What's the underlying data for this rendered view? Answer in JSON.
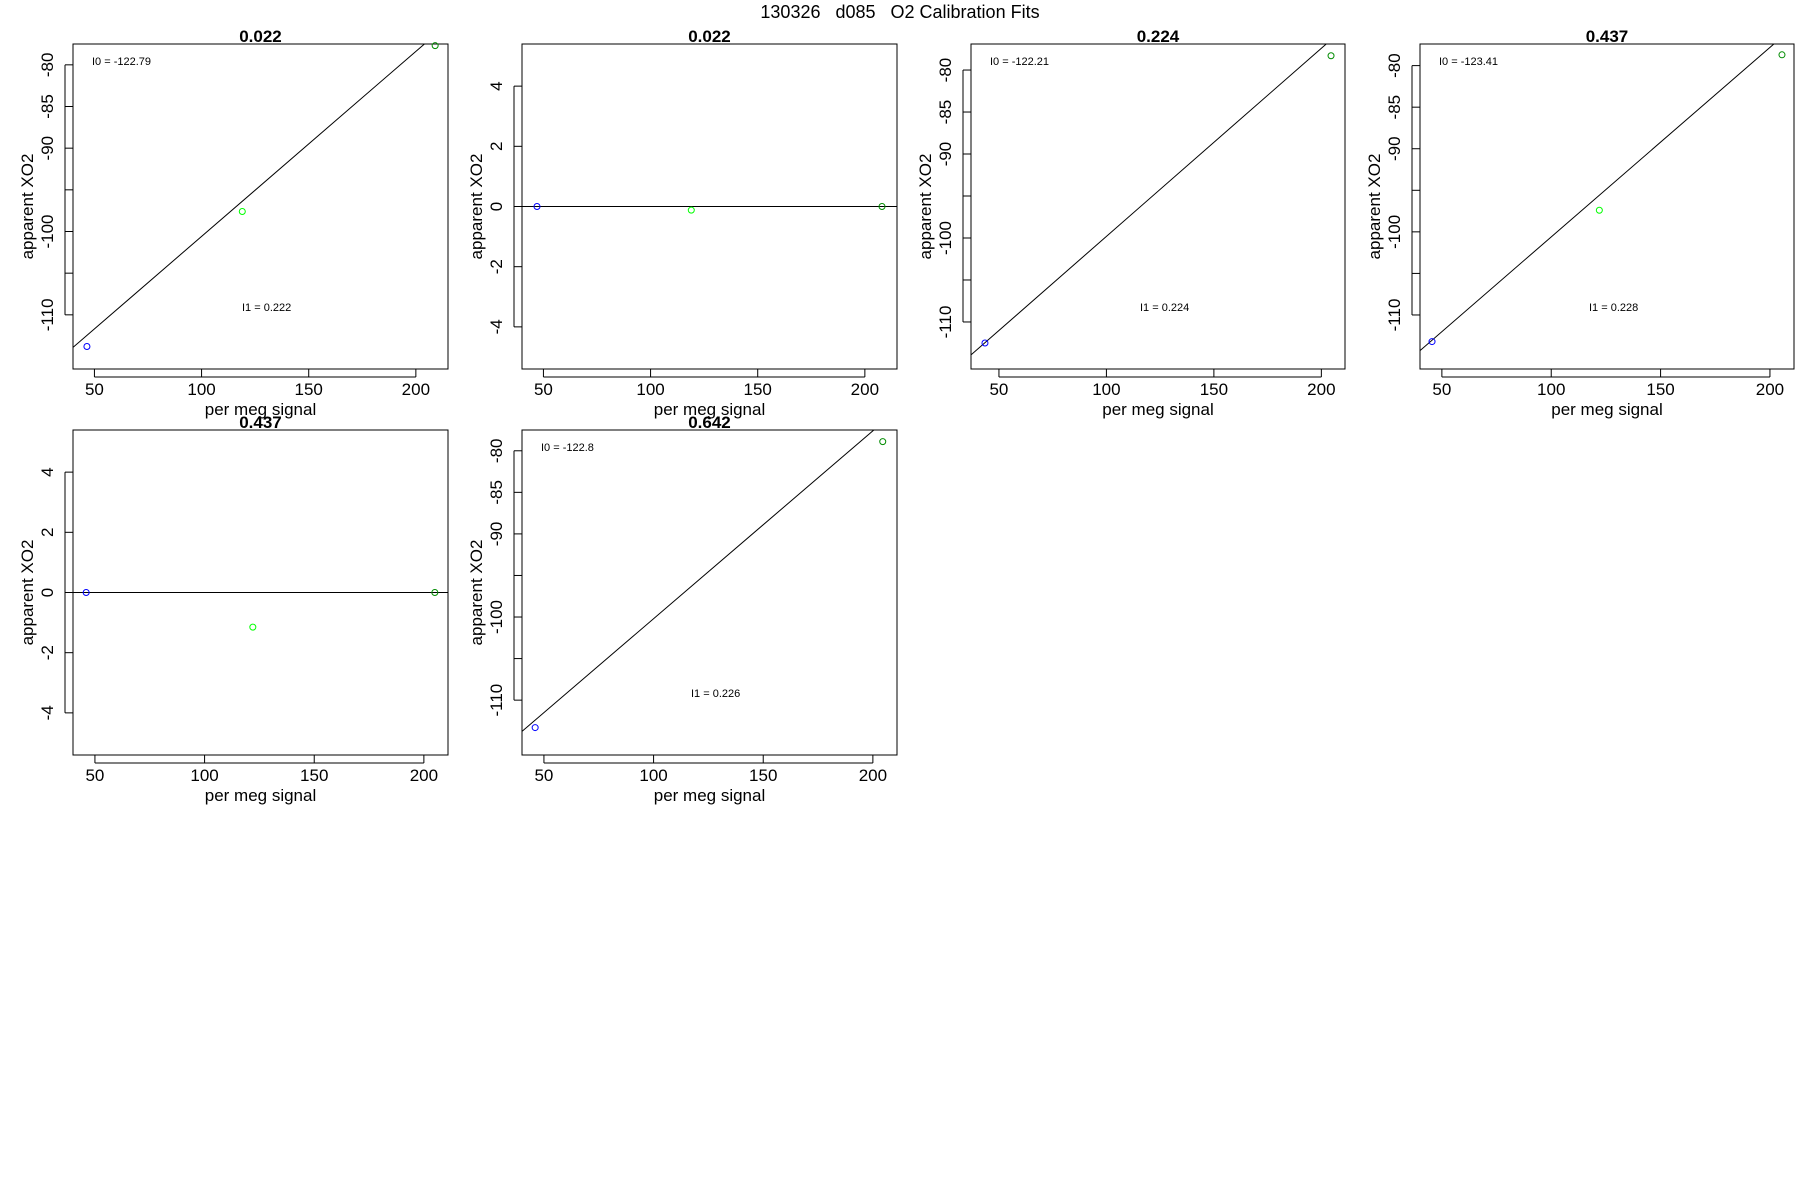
{
  "page_title": "130326   d085   O2 Calibration Fits",
  "colors": {
    "frame": "#000000",
    "fit_line": "#000000",
    "point_blue": "#0000ff",
    "point_light_green": "#00ff00",
    "point_dark_green": "#008b00",
    "background": "#ffffff"
  },
  "chart_data": [
    {
      "type": "scatter",
      "title": "0.022",
      "xlabel": "per meg signal",
      "ylabel": "apparent XO2",
      "xlim": [
        40,
        215
      ],
      "ylim": [
        -116.5,
        -77.5
      ],
      "xticks": [
        50,
        100,
        150,
        200
      ],
      "yticks": [
        -80,
        -85,
        -90,
        -100,
        -110
      ],
      "ytick_labels": [
        "-80",
        "-85",
        "-90",
        "-100",
        "-110"
      ],
      "y_minor_ticks": [
        -95,
        -105
      ],
      "grid": false,
      "points": [
        {
          "x": 46.5,
          "y": -113.8,
          "color": "#0000ff"
        },
        {
          "x": 119,
          "y": -97.6,
          "color": "#00ff00"
        },
        {
          "x": 209,
          "y": -77.7,
          "color": "#008b00"
        }
      ],
      "line": {
        "intercept": -122.79,
        "slope": 0.222
      },
      "annotations": [
        {
          "label": "I0 = ",
          "value": "-122.79",
          "pos": "top-left"
        },
        {
          "label": "I1 = ",
          "value": "0.222",
          "pos": "lower-middle"
        }
      ]
    },
    {
      "type": "scatter",
      "title": "0.022",
      "xlabel": "per meg signal",
      "ylabel": "apparent XO2",
      "xlim": [
        40,
        215
      ],
      "ylim": [
        -5.4,
        5.4
      ],
      "xticks": [
        50,
        100,
        150,
        200
      ],
      "yticks": [
        4,
        2,
        0,
        -2,
        -4
      ],
      "ytick_labels": [
        "4",
        "2",
        "0",
        "-2",
        "-4"
      ],
      "y_minor_ticks": [],
      "grid": false,
      "points": [
        {
          "x": 47,
          "y": 0.0,
          "color": "#0000ff"
        },
        {
          "x": 119,
          "y": -0.12,
          "color": "#00ff00"
        },
        {
          "x": 208,
          "y": 0.0,
          "color": "#008b00"
        }
      ],
      "line": {
        "intercept": 0,
        "slope": 0
      },
      "annotations": []
    },
    {
      "type": "scatter",
      "title": "0.224",
      "xlabel": "per meg signal",
      "ylabel": "apparent XO2",
      "xlim": [
        37,
        211
      ],
      "ylim": [
        -115.6,
        -76.9
      ],
      "xticks": [
        50,
        100,
        150,
        200
      ],
      "yticks": [
        -80,
        -85,
        -90,
        -100,
        -110
      ],
      "ytick_labels": [
        "-80",
        "-85",
        "-90",
        "-100",
        "-110"
      ],
      "y_minor_ticks": [
        -95,
        -105
      ],
      "grid": false,
      "points": [
        {
          "x": 43.5,
          "y": -112.5,
          "color": "#0000ff"
        },
        {
          "x": 204.5,
          "y": -78.3,
          "color": "#008b00"
        }
      ],
      "line": {
        "intercept": -122.21,
        "slope": 0.224
      },
      "annotations": [
        {
          "label": "I0 = ",
          "value": "-122.21",
          "pos": "top-left"
        },
        {
          "label": "I1 = ",
          "value": "0.224",
          "pos": "lower-middle"
        }
      ]
    },
    {
      "type": "scatter",
      "title": "0.437",
      "xlabel": "per meg signal",
      "ylabel": "apparent XO2",
      "xlim": [
        40,
        211
      ],
      "ylim": [
        -116.5,
        -77.4
      ],
      "xticks": [
        50,
        100,
        150,
        200
      ],
      "yticks": [
        -80,
        -85,
        -90,
        -100,
        -110
      ],
      "ytick_labels": [
        "-80",
        "-85",
        "-90",
        "-100",
        "-110"
      ],
      "y_minor_ticks": [
        -95,
        -105
      ],
      "grid": false,
      "points": [
        {
          "x": 45.5,
          "y": -113.2,
          "color": "#0000ff"
        },
        {
          "x": 122,
          "y": -97.4,
          "color": "#00ff00"
        },
        {
          "x": 205.5,
          "y": -78.7,
          "color": "#008b00"
        }
      ],
      "line": {
        "intercept": -123.41,
        "slope": 0.228
      },
      "annotations": [
        {
          "label": "I0 = ",
          "value": "-123.41",
          "pos": "top-left"
        },
        {
          "label": "I1 = ",
          "value": "0.228",
          "pos": "lower-middle"
        }
      ]
    },
    {
      "type": "scatter",
      "title": "0.437",
      "xlabel": "per meg signal",
      "ylabel": "apparent XO2",
      "xlim": [
        40,
        211
      ],
      "ylim": [
        -5.4,
        5.4
      ],
      "xticks": [
        50,
        100,
        150,
        200
      ],
      "yticks": [
        4,
        2,
        0,
        -2,
        -4
      ],
      "ytick_labels": [
        "4",
        "2",
        "0",
        "-2",
        "-4"
      ],
      "y_minor_ticks": [],
      "grid": false,
      "points": [
        {
          "x": 46,
          "y": 0.0,
          "color": "#0000ff"
        },
        {
          "x": 122,
          "y": -1.15,
          "color": "#00ff00"
        },
        {
          "x": 205,
          "y": 0.0,
          "color": "#008b00"
        }
      ],
      "line": {
        "intercept": 0,
        "slope": 0
      },
      "annotations": []
    },
    {
      "type": "scatter",
      "title": "0.642",
      "xlabel": "per meg signal",
      "ylabel": "apparent XO2",
      "xlim": [
        40,
        211
      ],
      "ylim": [
        -116.6,
        -77.5
      ],
      "xticks": [
        50,
        100,
        150,
        200
      ],
      "yticks": [
        -80,
        -85,
        -90,
        -100,
        -110
      ],
      "ytick_labels": [
        "-80",
        "-85",
        "-90",
        "-100",
        "-110"
      ],
      "y_minor_ticks": [
        -95,
        -105
      ],
      "grid": false,
      "points": [
        {
          "x": 46,
          "y": -113.3,
          "color": "#0000ff"
        },
        {
          "x": 204.5,
          "y": -78.9,
          "color": "#008b00"
        }
      ],
      "line": {
        "intercept": -122.8,
        "slope": 0.226
      },
      "annotations": [
        {
          "label": "I0 = ",
          "value": "-122.8",
          "pos": "top-left"
        },
        {
          "label": "I1 = ",
          "value": "0.226",
          "pos": "lower-middle"
        }
      ]
    }
  ]
}
